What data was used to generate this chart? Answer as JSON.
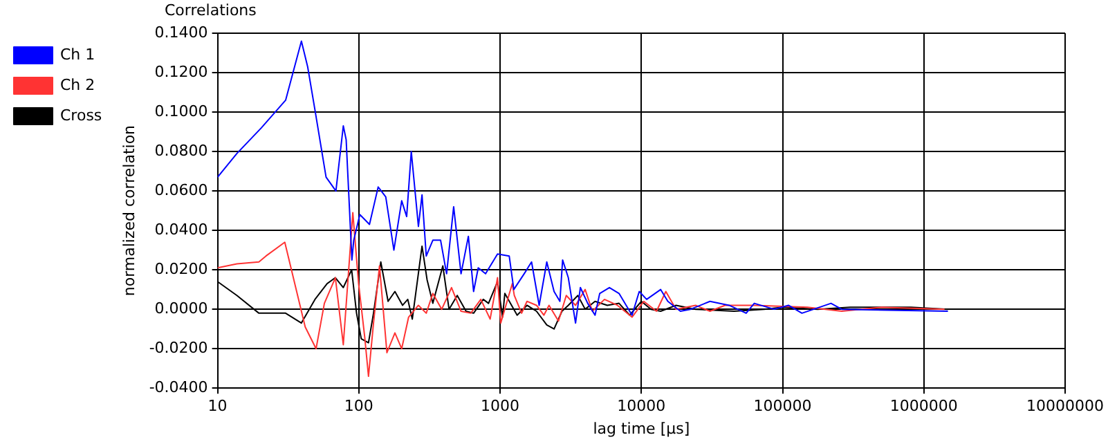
{
  "chart_data": {
    "type": "line",
    "title": "Correlations",
    "xlabel": "lag time [µs]",
    "ylabel": "normalized correlation",
    "log": "x",
    "grid": true,
    "legend": "top left",
    "marker": "none",
    "line_style": "solid",
    "xlim": [
      10,
      10000000
    ],
    "xticks": [
      10,
      100,
      1000,
      10000,
      100000,
      1000000,
      10000000
    ],
    "ylim": [
      -0.04,
      0.14
    ],
    "yticks": [
      {
        "value": -0.04,
        "label": "-0.0400"
      },
      {
        "value": -0.02,
        "label": "-0.0200"
      },
      {
        "value": 0,
        "label": "0.0000"
      },
      {
        "value": 0.02,
        "label": "0.0200"
      },
      {
        "value": 0.04,
        "label": "0.0400"
      },
      {
        "value": 0.06,
        "label": "0.0600"
      },
      {
        "value": 0.08,
        "label": "0.0800"
      },
      {
        "value": 0.1,
        "label": "0.1000"
      },
      {
        "value": 0.12,
        "label": "0.1200"
      },
      {
        "value": 0.14,
        "label": "0.1400"
      }
    ],
    "series": [
      {
        "name": "Ch 1",
        "color": "#0000ff",
        "x": [
          10,
          13.7,
          20.4,
          30.3,
          39.2,
          43.4,
          48.9,
          58.6,
          68.8,
          77.6,
          81.3,
          89.3,
          92,
          101.6,
          118.9,
          137,
          155,
          177,
          201,
          218,
          235,
          264,
          280,
          300,
          334,
          379,
          418,
          469,
          529,
          596,
          649,
          700,
          789,
          959,
          1160,
          1250,
          1480,
          1670,
          1890,
          2140,
          2410,
          2650,
          2770,
          3040,
          3420,
          3700,
          4170,
          4700,
          5070,
          5940,
          6950,
          8590,
          9660,
          10900,
          13700,
          15400,
          18900,
          22300,
          30600,
          41800,
          55200,
          63000,
          87000,
          110000,
          137000,
          220000,
          262000,
          1480000
        ],
        "values": [
          0.067,
          0.079,
          0.092,
          0.106,
          0.136,
          0.123,
          0.101,
          0.067,
          0.06,
          0.093,
          0.086,
          0.025,
          0.035,
          0.048,
          0.043,
          0.062,
          0.057,
          0.03,
          0.055,
          0.047,
          0.08,
          0.042,
          0.058,
          0.027,
          0.035,
          0.035,
          0.018,
          0.052,
          0.018,
          0.037,
          0.009,
          0.021,
          0.018,
          0.028,
          0.027,
          0.01,
          0.018,
          0.024,
          0.002,
          0.024,
          0.009,
          0.004,
          0.025,
          0.016,
          -0.007,
          0.011,
          0.003,
          -0.003,
          0.008,
          0.011,
          0.008,
          -0.003,
          0.009,
          0.005,
          0.01,
          0.004,
          -0.001,
          0,
          0.004,
          0.002,
          -0.002,
          0.003,
          0,
          0.002,
          -0.002,
          0.003,
          0,
          -0.001
        ]
      },
      {
        "name": "Ch 2",
        "color": "#ff3333",
        "x": [
          10,
          13.7,
          19.6,
          22,
          29.9,
          41.7,
          49.8,
          57,
          68.2,
          77.6,
          90.6,
          99.6,
          110,
          117,
          127,
          140,
          158,
          180,
          201,
          225,
          264,
          300,
          334,
          386,
          453,
          529,
          620,
          730,
          850,
          959,
          1010,
          1220,
          1260,
          1420,
          1550,
          1810,
          2040,
          2220,
          2590,
          2940,
          3420,
          4000,
          4500,
          5480,
          6770,
          8590,
          10400,
          12800,
          14900,
          17600,
          24200,
          30600,
          39100,
          63000,
          150000,
          262000,
          500000,
          1400000
        ],
        "values": [
          0.021,
          0.023,
          0.024,
          0.027,
          0.034,
          -0.009,
          -0.02,
          0.003,
          0.016,
          -0.018,
          0.049,
          0.013,
          -0.014,
          -0.034,
          -0.007,
          0.022,
          -0.022,
          -0.012,
          -0.02,
          -0.004,
          0.002,
          -0.002,
          0.008,
          0,
          0.011,
          -0.001,
          -0.002,
          0.005,
          -0.005,
          0.016,
          -0.007,
          0.013,
          0.007,
          -0.002,
          0.004,
          0.002,
          -0.003,
          0.002,
          -0.006,
          0.007,
          0.002,
          0.01,
          -0.001,
          0.005,
          0.002,
          -0.004,
          0.004,
          -0.001,
          0.009,
          0,
          0.002,
          -0.001,
          0.002,
          0.002,
          0.001,
          -0.001,
          0.001,
          0
        ]
      },
      {
        "name": "Cross",
        "color": "#000000",
        "x": [
          10,
          13.7,
          19.6,
          30.3,
          39.2,
          48.9,
          59.6,
          68.2,
          77.6,
          88.9,
          96.3,
          104,
          117,
          127,
          143,
          161,
          180,
          204,
          222,
          239,
          280,
          304,
          334,
          393,
          435,
          497,
          574,
          649,
          760,
          828,
          959,
          1040,
          1080,
          1320,
          1550,
          1810,
          2140,
          2410,
          2740,
          3040,
          3550,
          4000,
          4700,
          5740,
          6950,
          8270,
          10000,
          11700,
          13700,
          17600,
          24200,
          45300,
          74000,
          100000,
          177000,
          300000,
          810000,
          1480000
        ],
        "values": [
          0.014,
          0.007,
          -0.002,
          -0.002,
          -0.007,
          0.005,
          0.013,
          0.016,
          0.011,
          0.02,
          -0.002,
          -0.015,
          -0.017,
          -0.002,
          0.024,
          0.004,
          0.009,
          0.002,
          0.005,
          -0.005,
          0.032,
          0.015,
          0.003,
          0.022,
          0,
          0.007,
          -0.001,
          -0.002,
          0.005,
          0.003,
          0.014,
          -0.004,
          0.008,
          -0.003,
          0.002,
          -0.001,
          -0.008,
          -0.01,
          -0.001,
          0.002,
          0.007,
          0,
          0.004,
          0.002,
          0.003,
          -0.003,
          0.004,
          0,
          -0.001,
          0.002,
          0,
          -0.001,
          0,
          0.001,
          0,
          0.001,
          0.001,
          0
        ]
      }
    ]
  }
}
